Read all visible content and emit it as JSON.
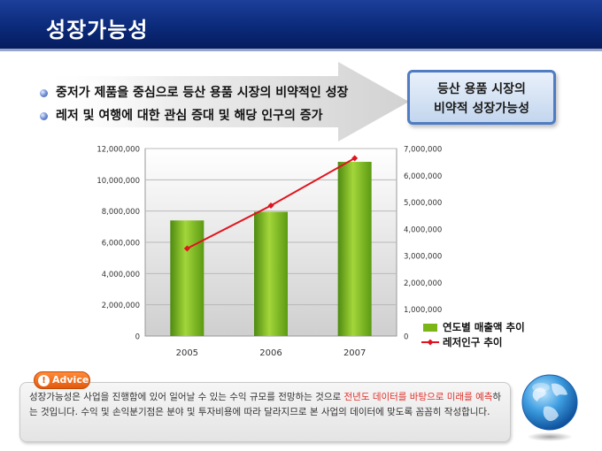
{
  "header": {
    "title": "성장가능성"
  },
  "bullets": [
    "중저가 제품을 중심으로 등산 용품 시장의 비약적인 성장",
    "레저 및 여행에 대한 관심 증대 및 해당 인구의 증가"
  ],
  "callout": {
    "line1": "등산 용품 시장의",
    "line2": "비약적 성장가능성"
  },
  "advice": {
    "badge": "Advice",
    "part1": "성장가능성은 사업을 진행함에 있어 일어날 수 있는 수익 규모를 전망하는 것으로 ",
    "highlight1": "전년도 데이터를 바탕으로 미래를 예측",
    "part2": "하는 것입니다. 수익 및 손익분기점은 분야 및 투자비용에 따라 달라지므로 본 사업의 데이터에 맞도록 꼼꼼히 작성합니다."
  },
  "colors": {
    "bar": "#7cb518",
    "line": "#e0141e",
    "header": "#0b2a7a",
    "highlight": "#e0312a"
  },
  "chart_data": {
    "type": "bar",
    "categories": [
      "2005",
      "2006",
      "2007"
    ],
    "series": [
      {
        "name": "연도별 매출액 추이",
        "type": "bar",
        "axis": "left",
        "values": [
          7400000,
          7950000,
          11150000
        ]
      },
      {
        "name": "레저인구 추이",
        "type": "line",
        "axis": "right",
        "values": [
          3270000,
          4870000,
          6640000
        ]
      }
    ],
    "ylim_left": [
      0,
      12000000
    ],
    "ylim_right": [
      0,
      7000000
    ],
    "yticks_left": [
      "0",
      "2,000,000",
      "4,000,000",
      "6,000,000",
      "8,000,000",
      "10,000,000",
      "12,000,000"
    ],
    "yticks_right": [
      "0",
      "1,000,000",
      "2,000,000",
      "3,000,000",
      "4,000,000",
      "5,000,000",
      "6,000,000",
      "7,000,000"
    ],
    "legend_position": "right-bottom",
    "grid": true
  }
}
